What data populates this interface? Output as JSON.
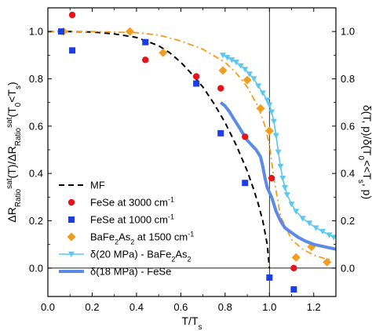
{
  "chart_data": {
    "type": "scatter",
    "xlabel": "T/T",
    "xlabel_sub": "s",
    "ylabel_left": "ΔR",
    "ylabel_left_parts": [
      "ΔR",
      "Ratio",
      "sat",
      "(T)/ΔR",
      "Ratio",
      "sat",
      "(T",
      "0",
      "<T",
      "s",
      ")"
    ],
    "ylabel_right": "δ(T, p)/δ(T",
    "ylabel_right_parts": [
      "δ(T, p)/δ(T",
      "0",
      "<<T",
      "s",
      ", p)"
    ],
    "xlim": [
      0,
      1.3
    ],
    "ylim": [
      -0.12,
      1.1
    ],
    "x_ticks": [
      "0.0",
      "0.2",
      "0.4",
      "0.6",
      "0.8",
      "1.0",
      "1.2"
    ],
    "x_tick_values": [
      0,
      0.2,
      0.4,
      0.6,
      0.8,
      1.0,
      1.2
    ],
    "y_ticks": [
      "0.0",
      "0.2",
      "0.4",
      "0.6",
      "0.8",
      "1.0"
    ],
    "y_tick_values": [
      0,
      0.2,
      0.4,
      0.6,
      0.8,
      1.0
    ],
    "vline_x": 1.0,
    "hline_y": 0.0,
    "legend_position": "bottom-left",
    "series": [
      {
        "name": "MF",
        "legend_parts": [
          "MF"
        ],
        "kind": "line",
        "style": "dashed",
        "color": "#000000",
        "x": [
          0.0,
          0.1,
          0.2,
          0.3,
          0.4,
          0.5,
          0.55,
          0.6,
          0.65,
          0.7,
          0.75,
          0.8,
          0.85,
          0.9,
          0.93,
          0.95,
          0.97,
          0.98,
          0.99,
          1.0
        ],
        "y": [
          1.0,
          1.0,
          0.998,
          0.99,
          0.975,
          0.94,
          0.91,
          0.87,
          0.82,
          0.765,
          0.695,
          0.615,
          0.52,
          0.41,
          0.33,
          0.27,
          0.2,
          0.15,
          0.1,
          0.0
        ]
      },
      {
        "name": "FeSe at 3000 cm-1",
        "legend_parts": [
          "FeSe at 3000 cm",
          "-1"
        ],
        "kind": "scatter",
        "marker": "circle",
        "color": "#e4141b",
        "x": [
          0.11,
          0.44,
          0.67,
          0.78,
          0.89,
          1.01,
          1.11
        ],
        "y": [
          1.07,
          0.88,
          0.81,
          0.76,
          0.555,
          0.38,
          0.0
        ]
      },
      {
        "name": "FeSe at 1000 cm-1",
        "legend_parts": [
          "FeSe at 1000 cm",
          "-1"
        ],
        "kind": "scatter",
        "marker": "square",
        "color": "#1a3ee6",
        "x": [
          0.06,
          0.11,
          0.44,
          0.67,
          0.78,
          0.89,
          1.0,
          1.11
        ],
        "y": [
          1.0,
          0.92,
          0.955,
          0.78,
          0.57,
          0.36,
          -0.04,
          -0.09
        ]
      },
      {
        "name": "BaFe2As2 at 1500 cm-1",
        "legend_parts": [
          "BaFe",
          "2",
          "As",
          "2",
          " at 1500 cm",
          "-1"
        ],
        "kind": "scatter+line",
        "marker": "diamond",
        "style": "dashdot",
        "color": "#f39c1e",
        "x": [
          0.07,
          0.37,
          0.52,
          0.79,
          0.9,
          0.96,
          1.0,
          1.12,
          1.19,
          1.26
        ],
        "y": [
          1.0,
          1.0,
          0.91,
          0.835,
          0.795,
          0.675,
          0.58,
          0.045,
          0.09,
          0.025
        ],
        "line_x": [
          0.0,
          0.2,
          0.4,
          0.5,
          0.6,
          0.7,
          0.8,
          0.85,
          0.9,
          0.95,
          0.98,
          1.0,
          1.02,
          1.05,
          1.1,
          1.15,
          1.2,
          1.25,
          1.28
        ],
        "line_y": [
          1.0,
          1.0,
          0.995,
          0.985,
          0.96,
          0.925,
          0.87,
          0.825,
          0.765,
          0.68,
          0.6,
          0.52,
          0.38,
          0.22,
          0.12,
          0.08,
          0.055,
          0.04,
          0.035
        ]
      },
      {
        "name": "δ(20 MPa) - BaFe2As2",
        "legend_parts": [
          "δ(20 MPa) - BaFe",
          "2",
          "As",
          "2"
        ],
        "kind": "line+markers",
        "marker": "triangle-down",
        "color": "#5bc8ef",
        "x": [
          0.79,
          0.81,
          0.83,
          0.85,
          0.87,
          0.89,
          0.91,
          0.93,
          0.95,
          0.97,
          0.99,
          1.0,
          1.01,
          1.02,
          1.03,
          1.04,
          1.05,
          1.06,
          1.07,
          1.08,
          1.1,
          1.12,
          1.15,
          1.18,
          1.21,
          1.24,
          1.27,
          1.29
        ],
        "y": [
          0.9,
          0.89,
          0.88,
          0.87,
          0.855,
          0.84,
          0.82,
          0.8,
          0.77,
          0.74,
          0.71,
          0.69,
          0.66,
          0.62,
          0.56,
          0.49,
          0.43,
          0.38,
          0.34,
          0.31,
          0.27,
          0.24,
          0.21,
          0.19,
          0.17,
          0.155,
          0.14,
          0.13
        ]
      },
      {
        "name": "δ(18 MPa) - FeSe",
        "legend_parts": [
          "δ(18 MPa) - FeSe"
        ],
        "kind": "line",
        "style": "thick",
        "color": "#5b8be6",
        "x": [
          0.78,
          0.8,
          0.82,
          0.84,
          0.86,
          0.88,
          0.9,
          0.92,
          0.94,
          0.96,
          0.97,
          0.98,
          0.99,
          1.0,
          1.01,
          1.02,
          1.03,
          1.05,
          1.07,
          1.1,
          1.13,
          1.16,
          1.2,
          1.25,
          1.3
        ],
        "y": [
          0.7,
          0.685,
          0.66,
          0.63,
          0.6,
          0.57,
          0.54,
          0.52,
          0.5,
          0.47,
          0.43,
          0.38,
          0.34,
          0.32,
          0.3,
          0.27,
          0.24,
          0.2,
          0.17,
          0.15,
          0.13,
          0.115,
          0.1,
          0.09,
          0.08
        ]
      }
    ]
  }
}
